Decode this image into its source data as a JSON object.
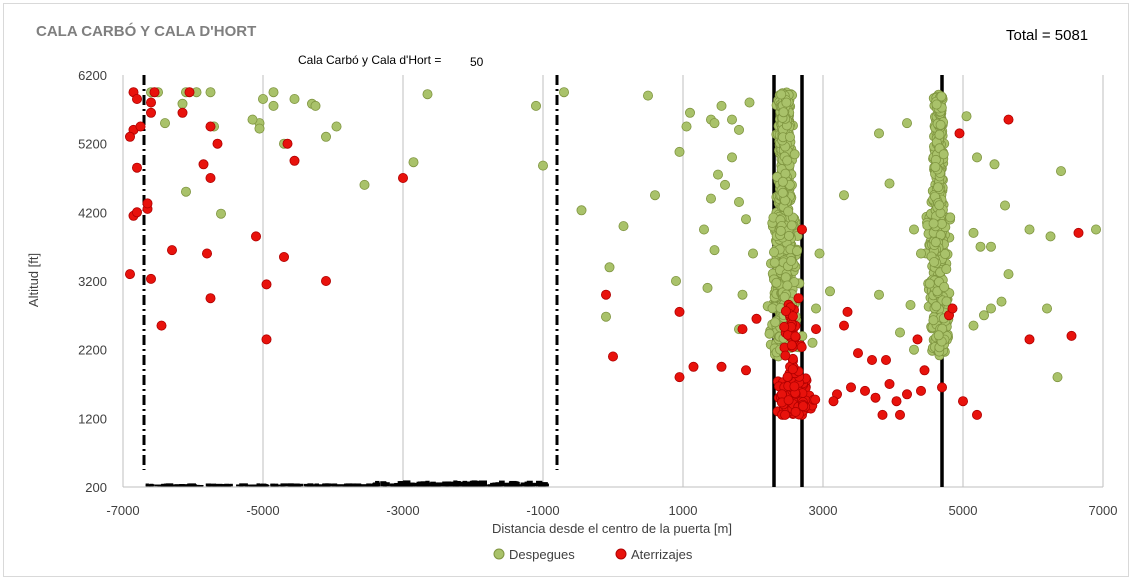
{
  "chart_data": {
    "type": "scatter",
    "title": "CALA CARBÓ Y CALA D'HORT",
    "total_label": "Total = 5081",
    "subtitle": "Cala Carbó y Cala d'Hort =",
    "subtitle_value": "50",
    "xlabel": "Distancia desde el centro de la puerta [m]",
    "ylabel": "Altitud [ft]",
    "xlim": [
      -7000,
      7000
    ],
    "ylim": [
      200,
      6200
    ],
    "xticks": [
      -7000,
      -5000,
      -3000,
      -1000,
      1000,
      3000,
      5000,
      7000
    ],
    "yticks": [
      200,
      1200,
      2200,
      3200,
      4200,
      5200,
      6200
    ],
    "grid": "vertical",
    "legend_position": "bottom",
    "colors": {
      "takeoff": "#a9c26a",
      "takeoff_edge": "#7f9540",
      "landing": "#e8120c",
      "landing_edge": "#b00000",
      "axis": "#bfbfbf",
      "lines": "#000000"
    },
    "reference_lines": {
      "dashdot_x": [
        -6700,
        -800
      ],
      "solid_x": [
        2300,
        2700,
        4700
      ]
    },
    "series": [
      {
        "name": "Despegues",
        "clusters": [
          {
            "x_center": 2450,
            "x_spread": 300,
            "y_min": 2100,
            "y_max": 5950,
            "count": 650
          },
          {
            "x_center": 4650,
            "x_spread": 250,
            "y_min": 2100,
            "y_max": 5950,
            "count": 450
          }
        ],
        "points": [
          [
            -6600,
            5950
          ],
          [
            -6500,
            5950
          ],
          [
            -6100,
            5950
          ],
          [
            -5950,
            5950
          ],
          [
            -5750,
            5950
          ],
          [
            -5000,
            5850
          ],
          [
            -4850,
            5950
          ],
          [
            -4850,
            5750
          ],
          [
            -6150,
            5780
          ],
          [
            -4550,
            5850
          ],
          [
            -4300,
            5780
          ],
          [
            -4250,
            5750
          ],
          [
            -3950,
            5450
          ],
          [
            -4100,
            5300
          ],
          [
            -5050,
            5500
          ],
          [
            -5050,
            5420
          ],
          [
            -5150,
            5550
          ],
          [
            -6400,
            5500
          ],
          [
            -5700,
            5450
          ],
          [
            -4700,
            5200
          ],
          [
            -2650,
            5920
          ],
          [
            -2850,
            4930
          ],
          [
            -3550,
            4600
          ],
          [
            -6100,
            4500
          ],
          [
            -5600,
            4180
          ],
          [
            -1100,
            5750
          ],
          [
            -1000,
            4880
          ],
          [
            -700,
            5950
          ],
          [
            -450,
            4230
          ],
          [
            500,
            5900
          ],
          [
            150,
            4000
          ],
          [
            600,
            4450
          ],
          [
            900,
            3200
          ],
          [
            -50,
            3400
          ],
          [
            -100,
            2680
          ],
          [
            950,
            5080
          ],
          [
            1050,
            5450
          ],
          [
            1100,
            5650
          ],
          [
            1400,
            5550
          ],
          [
            1450,
            5500
          ],
          [
            1550,
            5750
          ],
          [
            1700,
            5550
          ],
          [
            1800,
            5400
          ],
          [
            1950,
            5800
          ],
          [
            1400,
            4400
          ],
          [
            1300,
            3950
          ],
          [
            1450,
            3650
          ],
          [
            1350,
            3100
          ],
          [
            1500,
            4750
          ],
          [
            1600,
            4600
          ],
          [
            1700,
            5000
          ],
          [
            1800,
            4350
          ],
          [
            1900,
            4100
          ],
          [
            2000,
            3600
          ],
          [
            1850,
            3000
          ],
          [
            1800,
            2500
          ],
          [
            2950,
            3600
          ],
          [
            2900,
            2800
          ],
          [
            2850,
            2300
          ],
          [
            3100,
            3050
          ],
          [
            3300,
            4450
          ],
          [
            3800,
            5350
          ],
          [
            3950,
            4620
          ],
          [
            3800,
            3000
          ],
          [
            4200,
            5500
          ],
          [
            4300,
            3950
          ],
          [
            4400,
            3600
          ],
          [
            4250,
            2850
          ],
          [
            4100,
            2450
          ],
          [
            4300,
            2200
          ],
          [
            5050,
            5600
          ],
          [
            5200,
            5000
          ],
          [
            5450,
            4900
          ],
          [
            5150,
            3900
          ],
          [
            5250,
            3700
          ],
          [
            5400,
            3700
          ],
          [
            5600,
            4300
          ],
          [
            5650,
            3300
          ],
          [
            5550,
            2900
          ],
          [
            5400,
            2800
          ],
          [
            5150,
            2550
          ],
          [
            5300,
            2700
          ],
          [
            5950,
            3950
          ],
          [
            6250,
            3850
          ],
          [
            6400,
            4800
          ],
          [
            6900,
            3950
          ],
          [
            6200,
            2800
          ],
          [
            6350,
            1800
          ]
        ]
      },
      {
        "name": "Aterrizajes",
        "clusters": [
          {
            "x_center": 2600,
            "x_spread": 350,
            "y_min": 1250,
            "y_max": 1800,
            "count": 220
          },
          {
            "x_center": 2550,
            "x_spread": 250,
            "y_min": 1800,
            "y_max": 2900,
            "count": 40
          }
        ],
        "points": [
          [
            -6850,
            5950
          ],
          [
            -6800,
            5850
          ],
          [
            -6550,
            5950
          ],
          [
            -6050,
            5950
          ],
          [
            -6600,
            5800
          ],
          [
            -6600,
            5650
          ],
          [
            -6150,
            5650
          ],
          [
            -5750,
            5450
          ],
          [
            -6850,
            5400
          ],
          [
            -6900,
            5300
          ],
          [
            -6750,
            5450
          ],
          [
            -5650,
            5200
          ],
          [
            -4650,
            5200
          ],
          [
            -4550,
            4950
          ],
          [
            -5850,
            4900
          ],
          [
            -5750,
            4700
          ],
          [
            -6800,
            4850
          ],
          [
            -6850,
            4150
          ],
          [
            -6800,
            4200
          ],
          [
            -6650,
            4250
          ],
          [
            -6650,
            4330
          ],
          [
            -6300,
            3650
          ],
          [
            -5800,
            3600
          ],
          [
            -4700,
            3550
          ],
          [
            -5100,
            3850
          ],
          [
            -4950,
            3150
          ],
          [
            -4100,
            3200
          ],
          [
            -3000,
            4700
          ],
          [
            -6900,
            3300
          ],
          [
            -6600,
            3230
          ],
          [
            -6450,
            2550
          ],
          [
            -5750,
            2950
          ],
          [
            -4950,
            2350
          ],
          [
            -100,
            3000
          ],
          [
            0,
            2100
          ],
          [
            950,
            2750
          ],
          [
            950,
            1800
          ],
          [
            1150,
            1950
          ],
          [
            1550,
            1950
          ],
          [
            1900,
            1900
          ],
          [
            1850,
            2500
          ],
          [
            2050,
            2650
          ],
          [
            2700,
            3950
          ],
          [
            2650,
            2950
          ],
          [
            2900,
            2500
          ],
          [
            3300,
            2550
          ],
          [
            3350,
            2750
          ],
          [
            3500,
            2150
          ],
          [
            3700,
            2050
          ],
          [
            3900,
            2050
          ],
          [
            3750,
            1500
          ],
          [
            3850,
            1250
          ],
          [
            4100,
            1250
          ],
          [
            4200,
            1550
          ],
          [
            4400,
            1600
          ],
          [
            4450,
            1900
          ],
          [
            4350,
            2350
          ],
          [
            4800,
            2700
          ],
          [
            4850,
            2800
          ],
          [
            4700,
            1650
          ],
          [
            4950,
            5350
          ],
          [
            5000,
            1450
          ],
          [
            5200,
            1250
          ],
          [
            5650,
            5550
          ],
          [
            5950,
            2350
          ],
          [
            6550,
            2400
          ],
          [
            6650,
            3900
          ],
          [
            3200,
            1550
          ],
          [
            3400,
            1650
          ],
          [
            3600,
            1600
          ],
          [
            3150,
            1450
          ],
          [
            4050,
            1450
          ],
          [
            3950,
            1700
          ]
        ]
      }
    ],
    "noise_band": {
      "x_from": -6700,
      "x_to": -1000,
      "y": 210
    }
  }
}
